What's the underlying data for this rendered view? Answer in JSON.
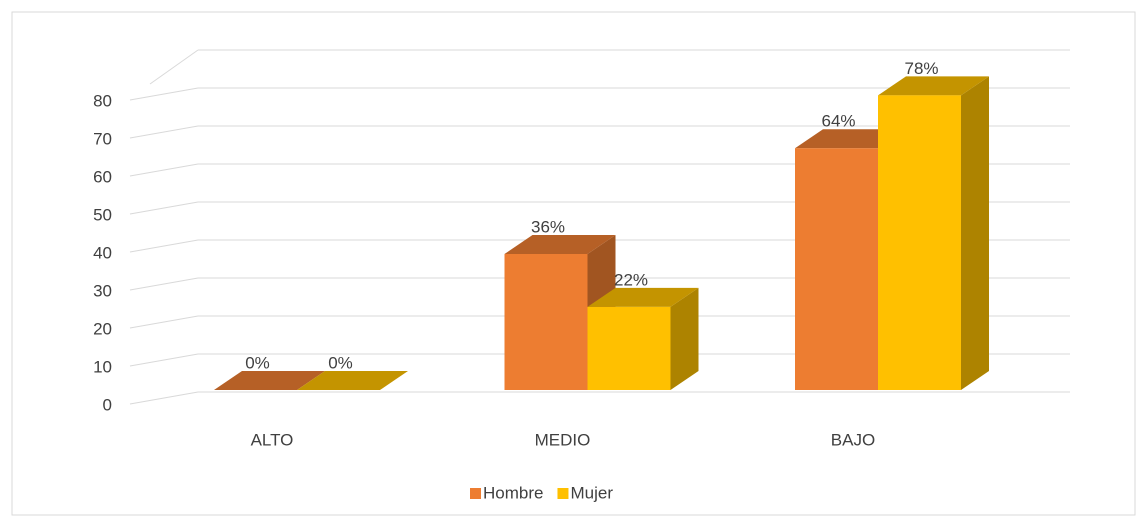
{
  "chart_data": {
    "type": "bar3d",
    "categories": [
      "ALTO",
      "MEDIO",
      "BAJO"
    ],
    "series": [
      {
        "name": "Hombre",
        "color": "#ED7D31",
        "values": [
          0,
          36,
          64
        ],
        "value_labels": [
          "0%",
          "36%",
          "64%"
        ]
      },
      {
        "name": "Mujer",
        "color": "#FFC000",
        "values": [
          0,
          22,
          78
        ],
        "value_labels": [
          "0%",
          "22%",
          "78%"
        ]
      }
    ],
    "ylim": [
      0,
      90
    ],
    "yticks": [
      0,
      10,
      20,
      30,
      40,
      50,
      60,
      70,
      80
    ],
    "grid": true,
    "legend": "bottom"
  }
}
